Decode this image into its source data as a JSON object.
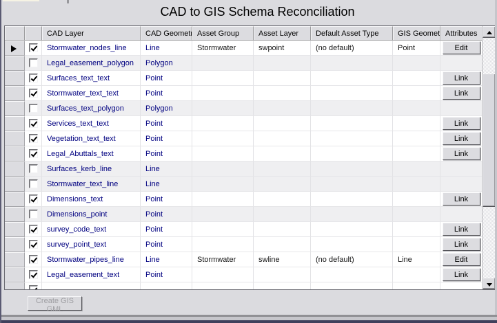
{
  "window": {
    "title": "CAD to GIS Schema Reconciliation"
  },
  "colors": {
    "cad_text_navy": "#000080",
    "unchecked_row_bg": "#efeff1",
    "dialog_bg": "#dbdbdf",
    "disabled_button_text": "#9e9ea2"
  },
  "grid": {
    "columns": [
      "CAD Layer",
      "CAD Geometry",
      "Asset Group",
      "Asset Layer",
      "Default Asset Type",
      "GIS Geometry",
      "Attributes"
    ],
    "icons": {
      "row_selector": "right-triangle-icon",
      "scroll_up": "up-arrow-icon",
      "scroll_down": "down-arrow-icon"
    },
    "rows": [
      {
        "selected": true,
        "checked": true,
        "cad_layer": "Stormwater_nodes_line",
        "cad_geometry": "Line",
        "asset_group": "Stormwater",
        "asset_layer": "swpoint",
        "default_asset_type": "(no default)",
        "gis_geometry": "Point",
        "button": "Edit"
      },
      {
        "selected": false,
        "checked": false,
        "cad_layer": "Legal_easement_polygon",
        "cad_geometry": "Polygon",
        "asset_group": "",
        "asset_layer": "",
        "default_asset_type": "",
        "gis_geometry": "",
        "button": ""
      },
      {
        "selected": false,
        "checked": true,
        "cad_layer": "Surfaces_text_text",
        "cad_geometry": "Point",
        "asset_group": "",
        "asset_layer": "",
        "default_asset_type": "",
        "gis_geometry": "",
        "button": "Link"
      },
      {
        "selected": false,
        "checked": true,
        "cad_layer": "Stormwater_text_text",
        "cad_geometry": "Point",
        "asset_group": "",
        "asset_layer": "",
        "default_asset_type": "",
        "gis_geometry": "",
        "button": "Link"
      },
      {
        "selected": false,
        "checked": false,
        "cad_layer": "Surfaces_text_polygon",
        "cad_geometry": "Polygon",
        "asset_group": "",
        "asset_layer": "",
        "default_asset_type": "",
        "gis_geometry": "",
        "button": ""
      },
      {
        "selected": false,
        "checked": true,
        "cad_layer": "Services_text_text",
        "cad_geometry": "Point",
        "asset_group": "",
        "asset_layer": "",
        "default_asset_type": "",
        "gis_geometry": "",
        "button": "Link"
      },
      {
        "selected": false,
        "checked": true,
        "cad_layer": "Vegetation_text_text",
        "cad_geometry": "Point",
        "asset_group": "",
        "asset_layer": "",
        "default_asset_type": "",
        "gis_geometry": "",
        "button": "Link"
      },
      {
        "selected": false,
        "checked": true,
        "cad_layer": "Legal_Abuttals_text",
        "cad_geometry": "Point",
        "asset_group": "",
        "asset_layer": "",
        "default_asset_type": "",
        "gis_geometry": "",
        "button": "Link"
      },
      {
        "selected": false,
        "checked": false,
        "cad_layer": "Surfaces_kerb_line",
        "cad_geometry": "Line",
        "asset_group": "",
        "asset_layer": "",
        "default_asset_type": "",
        "gis_geometry": "",
        "button": ""
      },
      {
        "selected": false,
        "checked": false,
        "cad_layer": "Stormwater_text_line",
        "cad_geometry": "Line",
        "asset_group": "",
        "asset_layer": "",
        "default_asset_type": "",
        "gis_geometry": "",
        "button": ""
      },
      {
        "selected": false,
        "checked": true,
        "cad_layer": "Dimensions_text",
        "cad_geometry": "Point",
        "asset_group": "",
        "asset_layer": "",
        "default_asset_type": "",
        "gis_geometry": "",
        "button": "Link"
      },
      {
        "selected": false,
        "checked": false,
        "cad_layer": "Dimensions_point",
        "cad_geometry": "Point",
        "asset_group": "",
        "asset_layer": "",
        "default_asset_type": "",
        "gis_geometry": "",
        "button": ""
      },
      {
        "selected": false,
        "checked": true,
        "cad_layer": "survey_code_text",
        "cad_geometry": "Point",
        "asset_group": "",
        "asset_layer": "",
        "default_asset_type": "",
        "gis_geometry": "",
        "button": "Link"
      },
      {
        "selected": false,
        "checked": true,
        "cad_layer": "survey_point_text",
        "cad_geometry": "Point",
        "asset_group": "",
        "asset_layer": "",
        "default_asset_type": "",
        "gis_geometry": "",
        "button": "Link"
      },
      {
        "selected": false,
        "checked": true,
        "cad_layer": "Stormwater_pipes_line",
        "cad_geometry": "Line",
        "asset_group": "Stormwater",
        "asset_layer": "swline",
        "default_asset_type": "(no default)",
        "gis_geometry": "Line",
        "button": "Edit"
      },
      {
        "selected": false,
        "checked": true,
        "cad_layer": "Legal_easement_text",
        "cad_geometry": "Point",
        "asset_group": "",
        "asset_layer": "",
        "default_asset_type": "",
        "gis_geometry": "",
        "button": "Link"
      },
      {
        "selected": false,
        "checked": true,
        "cad_layer": "",
        "cad_geometry": "",
        "asset_group": "",
        "asset_layer": "",
        "default_asset_type": "",
        "gis_geometry": "",
        "button": ""
      }
    ]
  },
  "buttons": {
    "create_gml": "Create GIS GML"
  }
}
